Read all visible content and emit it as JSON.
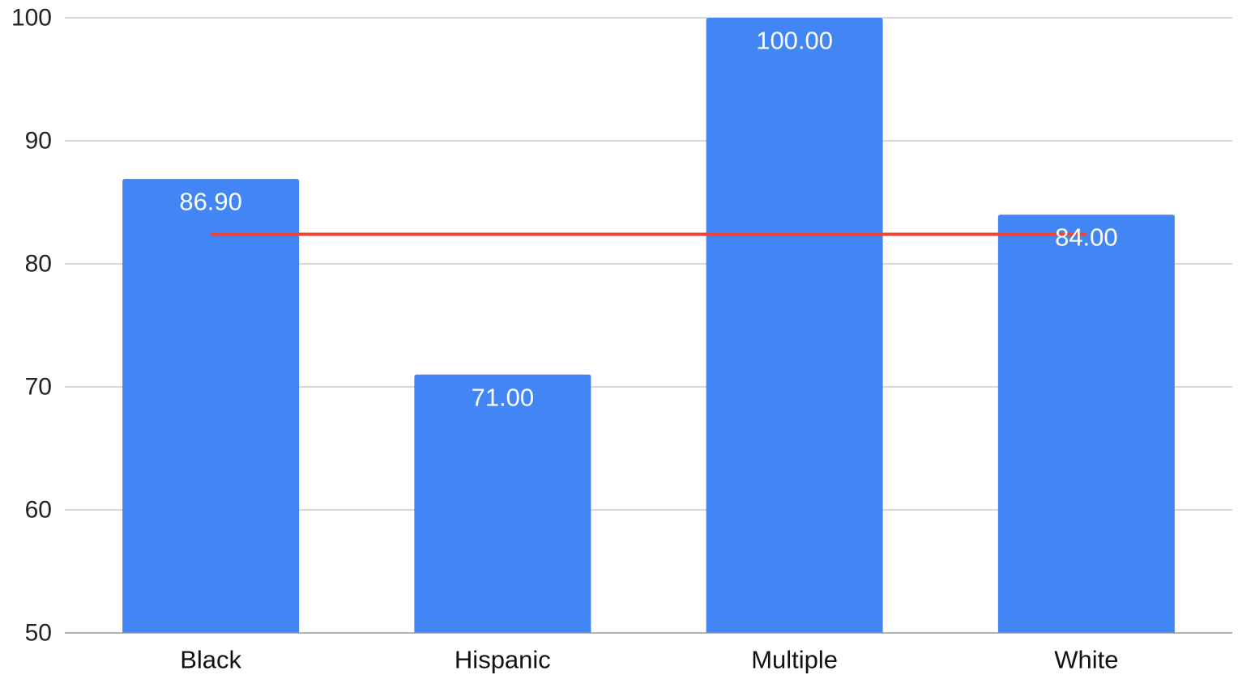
{
  "chart_data": {
    "type": "bar",
    "categories": [
      "Black",
      "Hispanic",
      "Multiple",
      "White"
    ],
    "series": [
      {
        "values": [
          86.9,
          71.0,
          100.0,
          84.0
        ]
      }
    ],
    "data_labels": [
      "86.90",
      "71.00",
      "100.00",
      "84.00"
    ],
    "reference_line": {
      "value": 82.4,
      "color": "#e8453c"
    },
    "title": "",
    "xlabel": "",
    "ylabel": "",
    "ylim": [
      50,
      100
    ],
    "yticks": [
      50,
      60,
      70,
      80,
      90,
      100
    ],
    "ytick_labels": [
      "50",
      "60",
      "70",
      "80",
      "90",
      "100"
    ],
    "grid": true,
    "legend": "none",
    "bar_color": "#4285f4",
    "grid_color": "#cccccc",
    "baseline_color": "#999999"
  }
}
